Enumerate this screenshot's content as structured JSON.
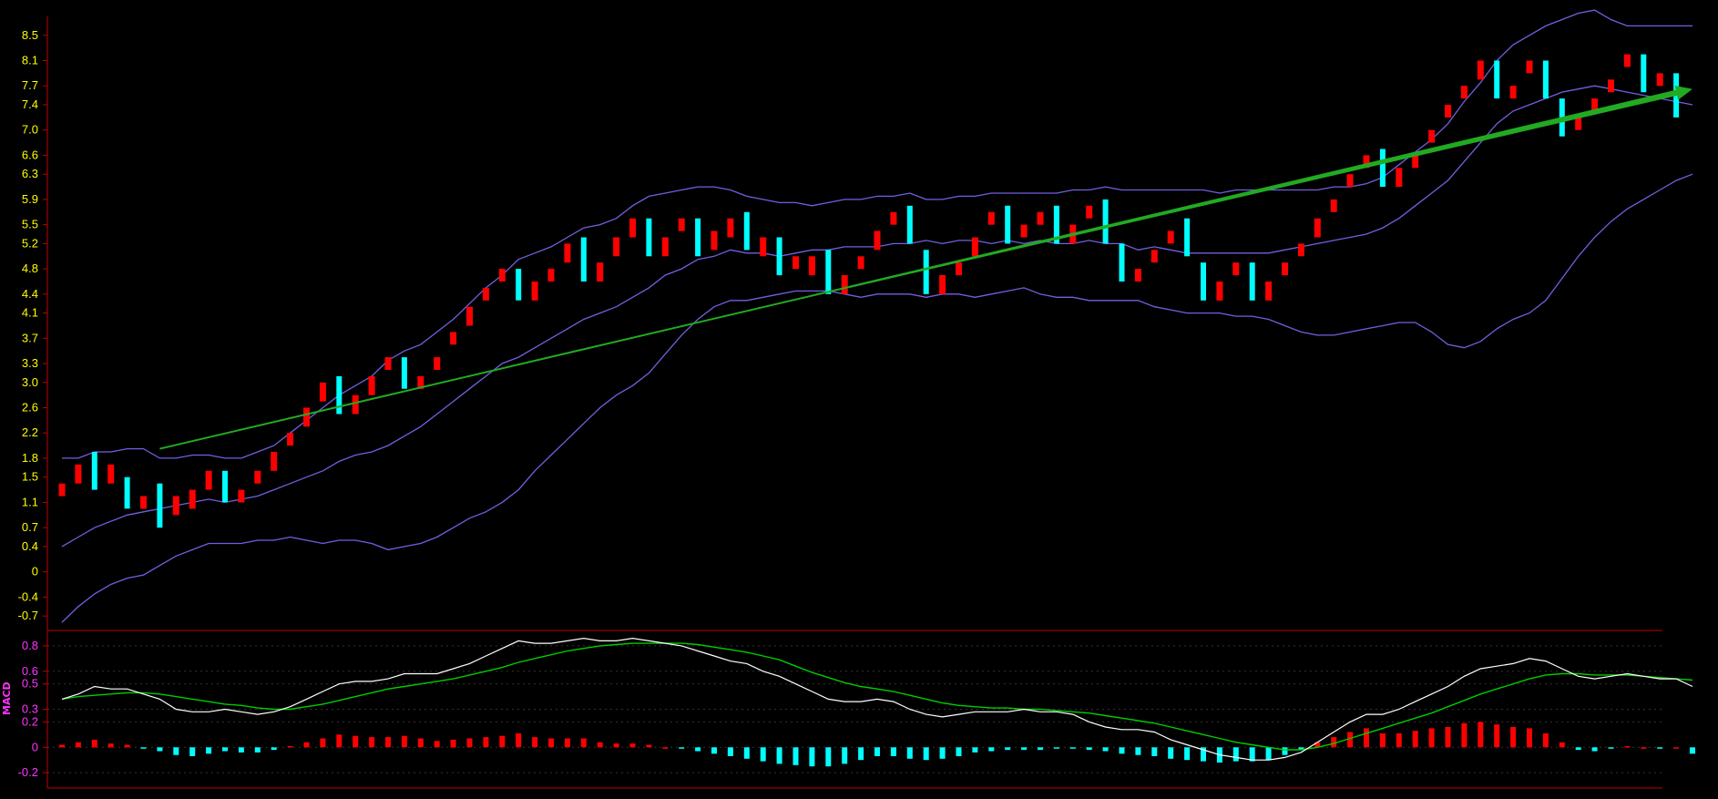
{
  "header": {
    "title": ""
  },
  "chart_data": [
    {
      "type": "candlestick",
      "name": "price",
      "ylim": [
        -0.9,
        8.8
      ],
      "yticks": [
        "8.5",
        "8.1",
        "7.7",
        "7.4",
        "7.0",
        "6.6",
        "6.3",
        "5.9",
        "5.5",
        "5.2",
        "4.8",
        "4.4",
        "4.1",
        "3.7",
        "3.3",
        "3.0",
        "2.6",
        "2.2",
        "1.8",
        "1.5",
        "1.1",
        "0.7",
        "0.4",
        "0",
        "-0.4",
        "-0.7"
      ],
      "ytick_values": [
        8.5,
        8.1,
        7.7,
        7.4,
        7.0,
        6.6,
        6.3,
        5.9,
        5.5,
        5.2,
        4.8,
        4.4,
        4.1,
        3.7,
        3.3,
        3.0,
        2.6,
        2.2,
        1.8,
        1.5,
        1.1,
        0.7,
        0.4,
        0,
        -0.4,
        -0.7
      ],
      "up_color": "#ff0000",
      "down_color": "#00ffff",
      "candles": [
        {
          "o": 1.4,
          "c": 1.2
        },
        {
          "o": 1.7,
          "c": 1.4
        },
        {
          "o": 1.9,
          "c": 1.3,
          "d": 1
        },
        {
          "o": 1.7,
          "c": 1.4
        },
        {
          "o": 1.5,
          "c": 1.0,
          "d": 1
        },
        {
          "o": 1.2,
          "c": 1.0
        },
        {
          "o": 1.4,
          "c": 0.7,
          "d": 1
        },
        {
          "o": 1.2,
          "c": 0.9
        },
        {
          "o": 1.3,
          "c": 1.0
        },
        {
          "o": 1.6,
          "c": 1.3
        },
        {
          "o": 1.6,
          "c": 1.1,
          "d": 1
        },
        {
          "o": 1.3,
          "c": 1.1
        },
        {
          "o": 1.6,
          "c": 1.4
        },
        {
          "o": 1.9,
          "c": 1.6
        },
        {
          "o": 2.2,
          "c": 2.0
        },
        {
          "o": 2.6,
          "c": 2.3
        },
        {
          "o": 3.0,
          "c": 2.7
        },
        {
          "o": 3.1,
          "c": 2.5,
          "d": 1
        },
        {
          "o": 2.8,
          "c": 2.5
        },
        {
          "o": 3.1,
          "c": 2.8
        },
        {
          "o": 3.4,
          "c": 3.2
        },
        {
          "o": 3.4,
          "c": 2.9,
          "d": 1
        },
        {
          "o": 3.1,
          "c": 2.9
        },
        {
          "o": 3.4,
          "c": 3.2
        },
        {
          "o": 3.8,
          "c": 3.6
        },
        {
          "o": 4.2,
          "c": 3.9
        },
        {
          "o": 4.5,
          "c": 4.3
        },
        {
          "o": 4.8,
          "c": 4.6
        },
        {
          "o": 4.8,
          "c": 4.3,
          "d": 1
        },
        {
          "o": 4.6,
          "c": 4.3
        },
        {
          "o": 4.8,
          "c": 4.6
        },
        {
          "o": 5.2,
          "c": 4.9
        },
        {
          "o": 5.3,
          "c": 4.6,
          "d": 1
        },
        {
          "o": 4.9,
          "c": 4.6
        },
        {
          "o": 5.3,
          "c": 5.0
        },
        {
          "o": 5.6,
          "c": 5.3
        },
        {
          "o": 5.6,
          "c": 5.0,
          "d": 1
        },
        {
          "o": 5.3,
          "c": 5.0
        },
        {
          "o": 5.6,
          "c": 5.4
        },
        {
          "o": 5.6,
          "c": 5.0,
          "d": 1
        },
        {
          "o": 5.4,
          "c": 5.1
        },
        {
          "o": 5.6,
          "c": 5.3
        },
        {
          "o": 5.7,
          "c": 5.1,
          "d": 1
        },
        {
          "o": 5.3,
          "c": 5.0
        },
        {
          "o": 5.3,
          "c": 4.7,
          "d": 1
        },
        {
          "o": 5.0,
          "c": 4.8
        },
        {
          "o": 5.0,
          "c": 4.7
        },
        {
          "o": 5.1,
          "c": 4.4,
          "d": 1
        },
        {
          "o": 4.7,
          "c": 4.4
        },
        {
          "o": 5.0,
          "c": 4.8
        },
        {
          "o": 5.4,
          "c": 5.1
        },
        {
          "o": 5.7,
          "c": 5.5
        },
        {
          "o": 5.8,
          "c": 5.2,
          "d": 1
        },
        {
          "o": 5.1,
          "c": 4.4,
          "d": 1
        },
        {
          "o": 4.7,
          "c": 4.4
        },
        {
          "o": 4.9,
          "c": 4.7
        },
        {
          "o": 5.3,
          "c": 5.0
        },
        {
          "o": 5.7,
          "c": 5.5
        },
        {
          "o": 5.8,
          "c": 5.2,
          "d": 1
        },
        {
          "o": 5.5,
          "c": 5.3
        },
        {
          "o": 5.7,
          "c": 5.5
        },
        {
          "o": 5.8,
          "c": 5.2,
          "d": 1
        },
        {
          "o": 5.5,
          "c": 5.2
        },
        {
          "o": 5.8,
          "c": 5.6
        },
        {
          "o": 5.9,
          "c": 5.2,
          "d": 1
        },
        {
          "o": 5.2,
          "c": 4.6,
          "d": 1
        },
        {
          "o": 4.8,
          "c": 4.6
        },
        {
          "o": 5.1,
          "c": 4.9
        },
        {
          "o": 5.4,
          "c": 5.2
        },
        {
          "o": 5.6,
          "c": 5.0,
          "d": 1
        },
        {
          "o": 4.9,
          "c": 4.3,
          "d": 1
        },
        {
          "o": 4.6,
          "c": 4.3
        },
        {
          "o": 4.9,
          "c": 4.7
        },
        {
          "o": 4.9,
          "c": 4.3,
          "d": 1
        },
        {
          "o": 4.6,
          "c": 4.3
        },
        {
          "o": 4.9,
          "c": 4.7
        },
        {
          "o": 5.2,
          "c": 5.0
        },
        {
          "o": 5.6,
          "c": 5.3
        },
        {
          "o": 5.9,
          "c": 5.7
        },
        {
          "o": 6.3,
          "c": 6.1
        },
        {
          "o": 6.6,
          "c": 6.4
        },
        {
          "o": 6.7,
          "c": 6.1,
          "d": 1
        },
        {
          "o": 6.4,
          "c": 6.1
        },
        {
          "o": 6.6,
          "c": 6.4
        },
        {
          "o": 7.0,
          "c": 6.8
        },
        {
          "o": 7.4,
          "c": 7.2
        },
        {
          "o": 7.7,
          "c": 7.5
        },
        {
          "o": 8.1,
          "c": 7.8
        },
        {
          "o": 8.1,
          "c": 7.5,
          "d": 1
        },
        {
          "o": 7.7,
          "c": 7.5
        },
        {
          "o": 8.1,
          "c": 7.9
        },
        {
          "o": 8.1,
          "c": 7.5,
          "d": 1
        },
        {
          "o": 7.5,
          "c": 6.9,
          "d": 1
        },
        {
          "o": 7.2,
          "c": 7.0
        },
        {
          "o": 7.5,
          "c": 7.3
        },
        {
          "o": 7.8,
          "c": 7.6
        },
        {
          "o": 8.2,
          "c": 8.0
        },
        {
          "o": 8.2,
          "c": 7.6,
          "d": 1
        },
        {
          "o": 7.9,
          "c": 7.7
        },
        {
          "o": 7.9,
          "c": 7.2,
          "d": 1
        }
      ],
      "band_color": "#7060e0",
      "upper_band": [
        1.8,
        1.8,
        1.9,
        1.9,
        1.95,
        1.95,
        1.8,
        1.8,
        1.85,
        1.85,
        1.8,
        1.8,
        1.9,
        2.0,
        2.2,
        2.4,
        2.6,
        2.8,
        2.95,
        3.1,
        3.35,
        3.5,
        3.6,
        3.8,
        4.0,
        4.25,
        4.5,
        4.7,
        4.95,
        5.05,
        5.15,
        5.3,
        5.45,
        5.5,
        5.6,
        5.8,
        5.95,
        6.0,
        6.05,
        6.1,
        6.1,
        6.05,
        5.95,
        5.9,
        5.85,
        5.85,
        5.8,
        5.85,
        5.9,
        5.9,
        5.95,
        5.95,
        6.0,
        5.9,
        5.9,
        5.95,
        5.95,
        6.0,
        6.0,
        6.0,
        6.0,
        6.0,
        6.05,
        6.05,
        6.1,
        6.05,
        6.05,
        6.05,
        6.05,
        6.05,
        6.05,
        6.0,
        6.05,
        6.05,
        6.05,
        6.05,
        6.05,
        6.05,
        6.1,
        6.1,
        6.15,
        6.25,
        6.45,
        6.65,
        6.85,
        7.1,
        7.45,
        7.75,
        8.1,
        8.35,
        8.5,
        8.65,
        8.75,
        8.85,
        8.9,
        8.75,
        8.65,
        8.65,
        8.65,
        8.65,
        8.65
      ],
      "middle_band": [
        0.4,
        0.55,
        0.7,
        0.8,
        0.9,
        0.95,
        1.0,
        1.05,
        1.1,
        1.15,
        1.1,
        1.15,
        1.2,
        1.3,
        1.4,
        1.5,
        1.6,
        1.75,
        1.85,
        1.9,
        2.0,
        2.15,
        2.3,
        2.5,
        2.7,
        2.9,
        3.1,
        3.3,
        3.4,
        3.55,
        3.7,
        3.85,
        4.0,
        4.1,
        4.2,
        4.35,
        4.5,
        4.7,
        4.8,
        4.95,
        5.0,
        5.1,
        5.05,
        5.05,
        5.0,
        5.05,
        5.1,
        5.1,
        5.15,
        5.15,
        5.15,
        5.2,
        5.2,
        5.25,
        5.2,
        5.25,
        5.25,
        5.2,
        5.25,
        5.2,
        5.25,
        5.2,
        5.2,
        5.25,
        5.2,
        5.2,
        5.1,
        5.15,
        5.1,
        5.05,
        5.05,
        5.05,
        5.05,
        5.05,
        5.05,
        5.1,
        5.15,
        5.2,
        5.25,
        5.3,
        5.35,
        5.45,
        5.6,
        5.8,
        6.0,
        6.2,
        6.5,
        6.8,
        7.1,
        7.3,
        7.4,
        7.5,
        7.6,
        7.65,
        7.7,
        7.65,
        7.6,
        7.55,
        7.5,
        7.45,
        7.4
      ],
      "lower_band": [
        -0.8,
        -0.55,
        -0.35,
        -0.2,
        -0.1,
        -0.05,
        0.1,
        0.25,
        0.35,
        0.45,
        0.45,
        0.45,
        0.5,
        0.5,
        0.55,
        0.5,
        0.45,
        0.5,
        0.5,
        0.45,
        0.35,
        0.4,
        0.45,
        0.55,
        0.7,
        0.85,
        0.95,
        1.1,
        1.3,
        1.6,
        1.85,
        2.1,
        2.35,
        2.6,
        2.8,
        2.95,
        3.15,
        3.45,
        3.75,
        4.0,
        4.2,
        4.3,
        4.3,
        4.35,
        4.4,
        4.45,
        4.45,
        4.45,
        4.4,
        4.35,
        4.4,
        4.4,
        4.4,
        4.35,
        4.4,
        4.4,
        4.35,
        4.4,
        4.45,
        4.5,
        4.4,
        4.35,
        4.35,
        4.3,
        4.3,
        4.3,
        4.3,
        4.2,
        4.15,
        4.1,
        4.1,
        4.1,
        4.05,
        4.05,
        4.0,
        3.9,
        3.8,
        3.75,
        3.75,
        3.8,
        3.85,
        3.9,
        3.95,
        3.95,
        3.8,
        3.6,
        3.55,
        3.65,
        3.85,
        4.0,
        4.1,
        4.3,
        4.65,
        5.0,
        5.3,
        5.55,
        5.75,
        5.9,
        6.05,
        6.2,
        6.3
      ],
      "annotations": [
        {
          "type": "arrow",
          "color": "#22aa22",
          "from": [
            6,
            1.95
          ],
          "to": [
            100,
            7.65
          ]
        }
      ]
    },
    {
      "type": "macd",
      "name": "MACD",
      "label": "MACD",
      "ylim": [
        -0.3,
        0.9
      ],
      "yticks": [
        "0.8",
        "0.6",
        "0.5",
        "0.3",
        "0.2",
        "0",
        "-0.2"
      ],
      "ytick_values": [
        0.8,
        0.6,
        0.5,
        0.3,
        0.2,
        0,
        -0.2
      ],
      "dif_color": "#ffffff",
      "dea_color": "#00cc00",
      "dif": [
        0.38,
        0.42,
        0.48,
        0.46,
        0.46,
        0.42,
        0.38,
        0.3,
        0.28,
        0.28,
        0.3,
        0.28,
        0.26,
        0.28,
        0.32,
        0.38,
        0.44,
        0.5,
        0.52,
        0.52,
        0.54,
        0.58,
        0.58,
        0.58,
        0.62,
        0.66,
        0.72,
        0.78,
        0.84,
        0.82,
        0.82,
        0.84,
        0.86,
        0.84,
        0.84,
        0.86,
        0.84,
        0.82,
        0.8,
        0.76,
        0.72,
        0.68,
        0.66,
        0.6,
        0.56,
        0.5,
        0.44,
        0.38,
        0.36,
        0.36,
        0.38,
        0.36,
        0.3,
        0.26,
        0.24,
        0.26,
        0.28,
        0.28,
        0.28,
        0.3,
        0.28,
        0.28,
        0.26,
        0.2,
        0.16,
        0.14,
        0.14,
        0.12,
        0.06,
        0.02,
        -0.02,
        -0.06,
        -0.08,
        -0.1,
        -0.1,
        -0.08,
        -0.04,
        0.04,
        0.12,
        0.2,
        0.26,
        0.26,
        0.3,
        0.36,
        0.42,
        0.48,
        0.56,
        0.62,
        0.64,
        0.66,
        0.7,
        0.68,
        0.62,
        0.56,
        0.54,
        0.56,
        0.58,
        0.56,
        0.54,
        0.54,
        0.48
      ],
      "dea": [
        0.38,
        0.4,
        0.41,
        0.42,
        0.43,
        0.43,
        0.42,
        0.4,
        0.38,
        0.36,
        0.34,
        0.33,
        0.31,
        0.3,
        0.3,
        0.32,
        0.34,
        0.37,
        0.4,
        0.43,
        0.46,
        0.48,
        0.5,
        0.52,
        0.54,
        0.57,
        0.6,
        0.63,
        0.67,
        0.7,
        0.73,
        0.76,
        0.78,
        0.8,
        0.81,
        0.82,
        0.82,
        0.82,
        0.82,
        0.81,
        0.79,
        0.77,
        0.75,
        0.72,
        0.69,
        0.64,
        0.59,
        0.55,
        0.51,
        0.48,
        0.46,
        0.44,
        0.41,
        0.38,
        0.35,
        0.33,
        0.32,
        0.31,
        0.31,
        0.3,
        0.3,
        0.29,
        0.28,
        0.27,
        0.25,
        0.23,
        0.21,
        0.19,
        0.16,
        0.13,
        0.1,
        0.07,
        0.04,
        0.02,
        0.0,
        -0.02,
        -0.02,
        0.0,
        0.03,
        0.07,
        0.11,
        0.15,
        0.19,
        0.23,
        0.27,
        0.32,
        0.37,
        0.42,
        0.46,
        0.5,
        0.54,
        0.57,
        0.58,
        0.58,
        0.57,
        0.57,
        0.57,
        0.56,
        0.55,
        0.54,
        0.53
      ],
      "hist": [
        0.02,
        0.04,
        0.06,
        0.03,
        0.02,
        -0.01,
        -0.03,
        -0.06,
        -0.07,
        -0.05,
        -0.03,
        -0.04,
        -0.04,
        -0.02,
        0.01,
        0.04,
        0.07,
        0.1,
        0.09,
        0.08,
        0.08,
        0.09,
        0.07,
        0.05,
        0.06,
        0.07,
        0.08,
        0.09,
        0.11,
        0.08,
        0.07,
        0.07,
        0.07,
        0.04,
        0.03,
        0.03,
        0.02,
        0.0,
        -0.01,
        -0.03,
        -0.05,
        -0.07,
        -0.09,
        -0.11,
        -0.13,
        -0.14,
        -0.15,
        -0.15,
        -0.13,
        -0.1,
        -0.07,
        -0.07,
        -0.09,
        -0.1,
        -0.09,
        -0.07,
        -0.04,
        -0.03,
        -0.02,
        -0.02,
        -0.02,
        -0.01,
        -0.01,
        -0.02,
        -0.03,
        -0.05,
        -0.06,
        -0.07,
        -0.09,
        -0.1,
        -0.11,
        -0.12,
        -0.11,
        -0.11,
        -0.1,
        -0.06,
        -0.02,
        0.04,
        0.08,
        0.12,
        0.15,
        0.11,
        0.11,
        0.13,
        0.15,
        0.16,
        0.19,
        0.2,
        0.18,
        0.16,
        0.15,
        0.11,
        0.04,
        -0.02,
        -0.03,
        -0.01,
        0.01,
        0.0,
        -0.01,
        0.0,
        -0.05
      ]
    }
  ]
}
